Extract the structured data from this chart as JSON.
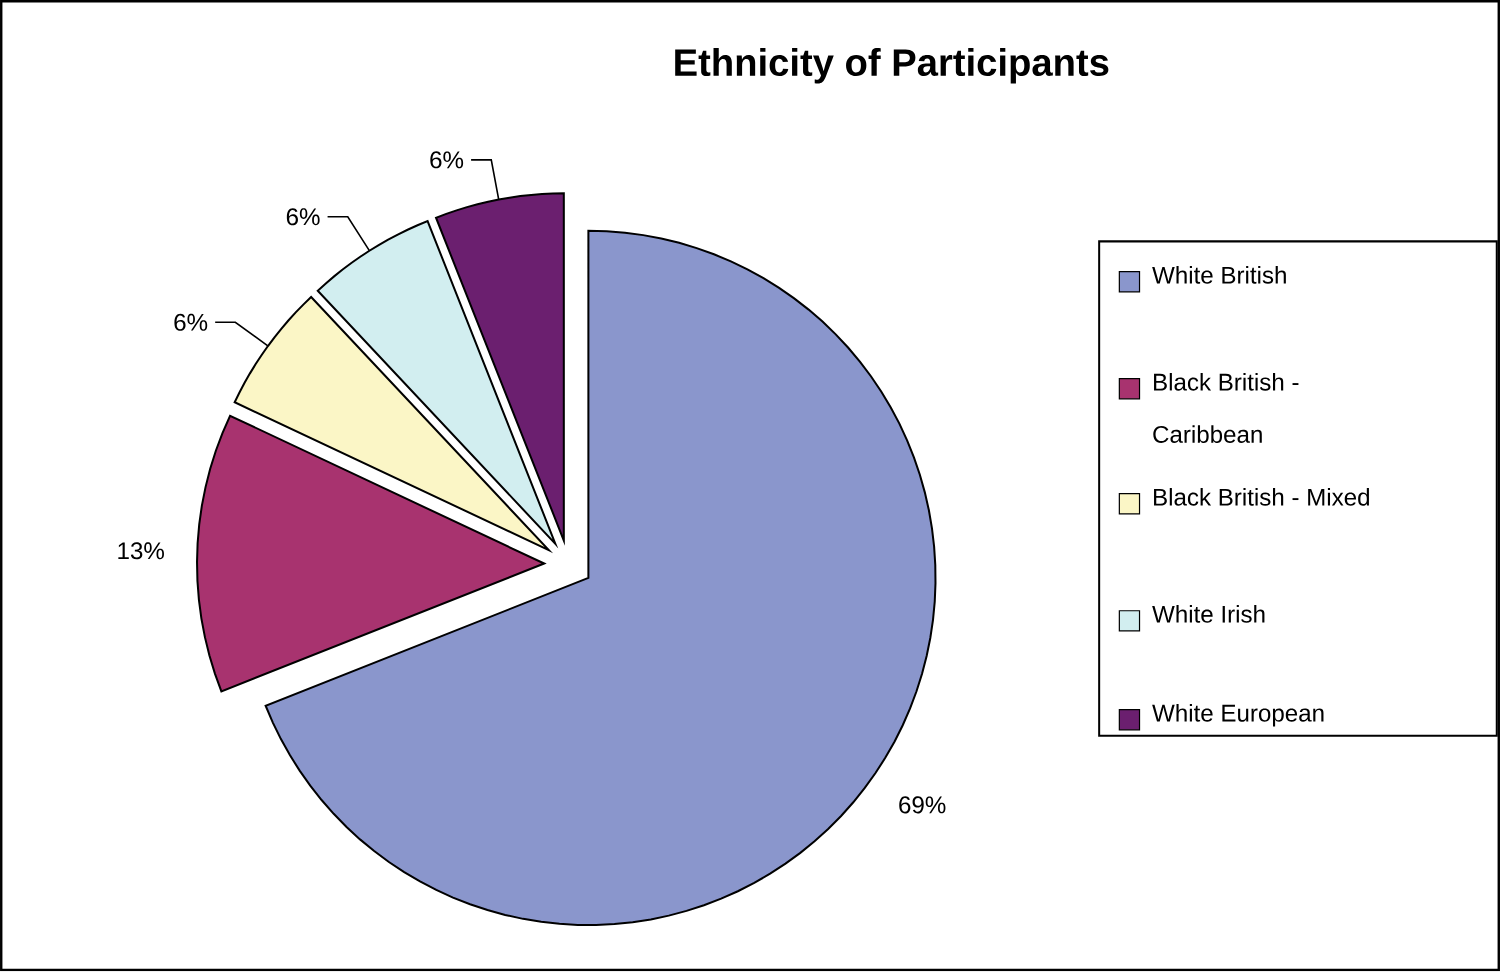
{
  "chart_data": {
    "type": "pie",
    "title": "Ethnicity of Participants",
    "categories": [
      "White British",
      "Black British - Caribbean",
      "Black British - Mixed",
      "White Irish",
      "White European"
    ],
    "values": [
      69,
      13,
      6,
      6,
      6
    ],
    "colors": [
      "#8a96cc",
      "#a8336f",
      "#fbf6c6",
      "#d2eef0",
      "#6b1f6f"
    ],
    "value_labels": [
      "69%",
      "13%",
      "6%",
      "6%",
      "6%"
    ],
    "legend": "right"
  }
}
